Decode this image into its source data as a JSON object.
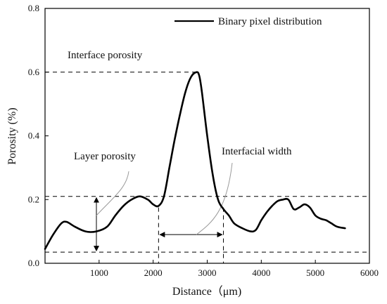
{
  "chart_data": {
    "type": "line",
    "xlabel": "Distance（μm)",
    "ylabel": "Porosity (%)",
    "xlim": [
      0,
      6000
    ],
    "ylim": [
      0,
      0.8
    ],
    "x_ticks": [
      1000,
      2000,
      3000,
      4000,
      5000,
      6000
    ],
    "x_tick_labels": [
      "1000",
      "2000",
      "3000",
      "4000",
      "5000",
      "6000"
    ],
    "y_ticks": [
      0.0,
      0.2,
      0.4,
      0.6,
      0.8
    ],
    "y_tick_labels": [
      "0.0",
      "0.2",
      "0.4",
      "0.6",
      "0.8"
    ],
    "legend": {
      "position": "top-right"
    },
    "series": [
      {
        "name": "Binary pixel distribution",
        "color": "#000000",
        "x": [
          0,
          150,
          300,
          400,
          550,
          750,
          950,
          1150,
          1300,
          1450,
          1600,
          1750,
          1900,
          2000,
          2100,
          2200,
          2300,
          2400,
          2500,
          2600,
          2700,
          2800,
          2850,
          2900,
          3000,
          3100,
          3200,
          3300,
          3400,
          3500,
          3650,
          3800,
          3900,
          4000,
          4100,
          4200,
          4300,
          4400,
          4500,
          4600,
          4700,
          4800,
          4900,
          5000,
          5100,
          5200,
          5300,
          5400,
          5550
        ],
        "y": [
          0.045,
          0.09,
          0.125,
          0.13,
          0.115,
          0.1,
          0.1,
          0.115,
          0.15,
          0.18,
          0.2,
          0.21,
          0.2,
          0.185,
          0.18,
          0.21,
          0.3,
          0.39,
          0.47,
          0.54,
          0.585,
          0.6,
          0.59,
          0.54,
          0.4,
          0.28,
          0.2,
          0.17,
          0.15,
          0.125,
          0.11,
          0.1,
          0.105,
          0.135,
          0.16,
          0.18,
          0.195,
          0.2,
          0.2,
          0.17,
          0.175,
          0.185,
          0.175,
          0.15,
          0.14,
          0.135,
          0.125,
          0.115,
          0.11
        ]
      }
    ],
    "reference_lines": {
      "horizontal": [
        0.6,
        0.21,
        0.035
      ],
      "vertical": [
        2100,
        3300
      ]
    },
    "annotations": [
      "Interface porosity",
      "Layer porosity",
      "Interfacial width"
    ],
    "colors": {
      "line": "#000000",
      "dashed": "#000000",
      "pointer": "#9a9a9a"
    }
  }
}
